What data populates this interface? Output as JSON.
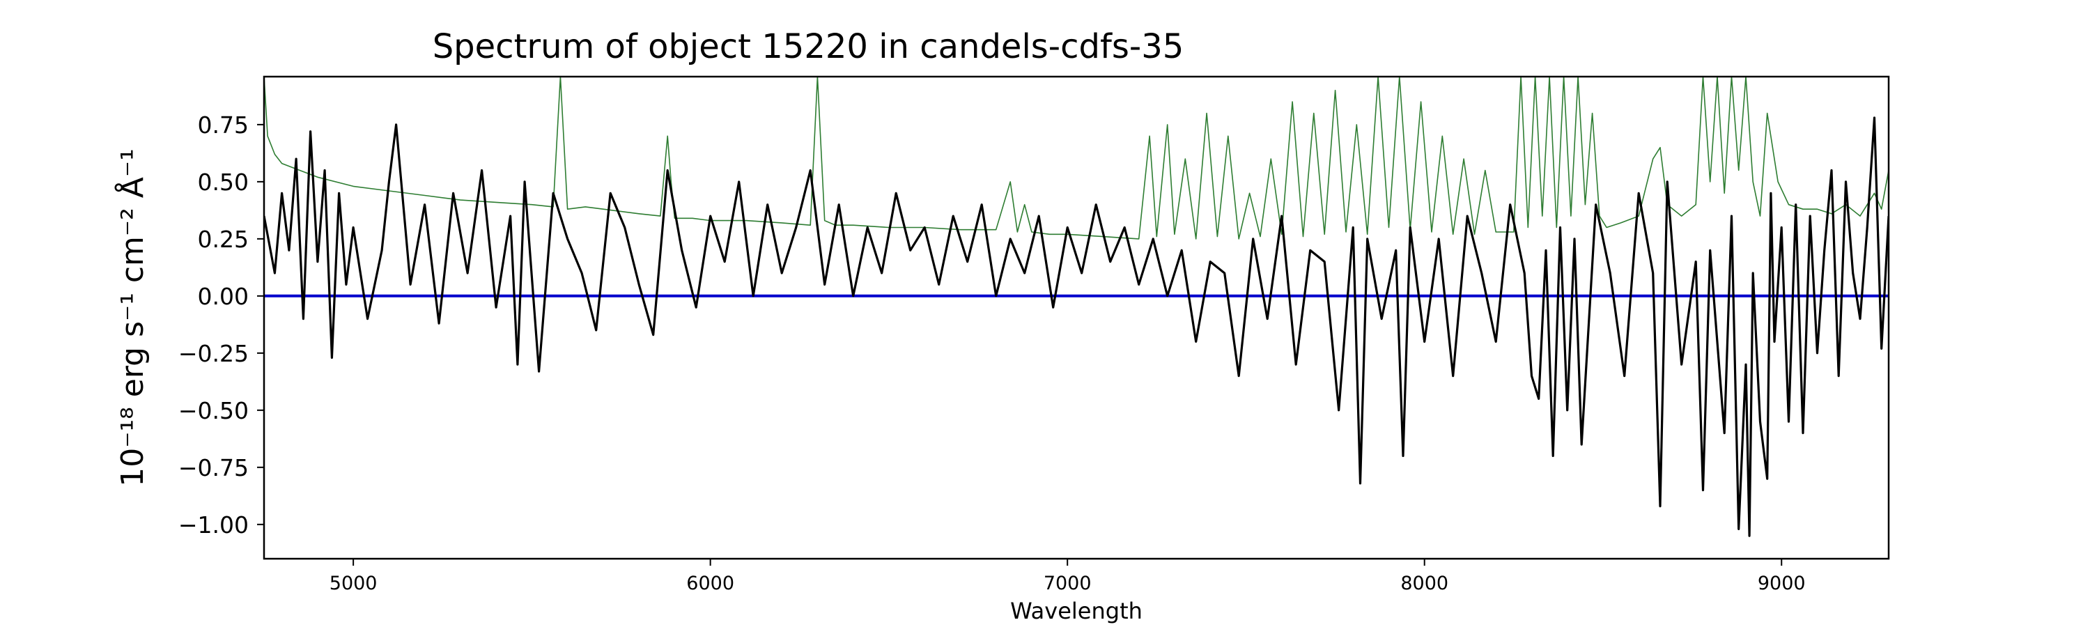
{
  "chart_data": {
    "type": "line",
    "title": "Spectrum of object 15220 in candels-cdfs-35",
    "xlabel": "Wavelength",
    "ylabel": "10⁻¹⁸ erg s⁻¹ cm⁻² Å⁻¹",
    "xlim": [
      4750,
      9300
    ],
    "ylim": [
      -1.15,
      0.96
    ],
    "x_ticks": [
      5000,
      6000,
      7000,
      8000,
      9000
    ],
    "y_ticks": [
      0.75,
      0.5,
      0.25,
      0.0,
      -0.25,
      -0.5,
      -0.75,
      -1.0
    ],
    "grid": false,
    "series": [
      {
        "role": "flux",
        "color": "#000000",
        "x": [
          4750,
          4780,
          4800,
          4820,
          4840,
          4860,
          4880,
          4900,
          4920,
          4940,
          4960,
          4980,
          5000,
          5040,
          5080,
          5100,
          5120,
          5160,
          5200,
          5240,
          5280,
          5320,
          5360,
          5400,
          5440,
          5460,
          5480,
          5520,
          5560,
          5600,
          5640,
          5680,
          5720,
          5760,
          5800,
          5840,
          5880,
          5920,
          5960,
          6000,
          6040,
          6080,
          6120,
          6160,
          6200,
          6240,
          6280,
          6320,
          6360,
          6400,
          6440,
          6480,
          6520,
          6560,
          6600,
          6640,
          6680,
          6720,
          6760,
          6800,
          6840,
          6880,
          6920,
          6960,
          7000,
          7040,
          7080,
          7120,
          7160,
          7200,
          7240,
          7280,
          7320,
          7360,
          7400,
          7440,
          7480,
          7520,
          7560,
          7600,
          7640,
          7680,
          7720,
          7760,
          7800,
          7820,
          7840,
          7880,
          7920,
          7940,
          7960,
          8000,
          8040,
          8080,
          8120,
          8160,
          8200,
          8240,
          8280,
          8300,
          8320,
          8340,
          8360,
          8380,
          8400,
          8420,
          8440,
          8480,
          8520,
          8560,
          8600,
          8640,
          8660,
          8680,
          8720,
          8760,
          8780,
          8800,
          8840,
          8860,
          8880,
          8900,
          8910,
          8920,
          8940,
          8960,
          8970,
          8980,
          9000,
          9020,
          9040,
          9060,
          9080,
          9100,
          9120,
          9140,
          9160,
          9180,
          9200,
          9220,
          9240,
          9260,
          9280,
          9300
        ],
        "values": [
          0.35,
          0.1,
          0.45,
          0.2,
          0.6,
          -0.1,
          0.72,
          0.15,
          0.55,
          -0.27,
          0.45,
          0.05,
          0.3,
          -0.1,
          0.2,
          0.5,
          0.75,
          0.05,
          0.4,
          -0.12,
          0.45,
          0.1,
          0.55,
          -0.05,
          0.35,
          -0.3,
          0.5,
          -0.33,
          0.45,
          0.25,
          0.1,
          -0.15,
          0.45,
          0.3,
          0.05,
          -0.17,
          0.55,
          0.2,
          -0.05,
          0.35,
          0.15,
          0.5,
          0.0,
          0.4,
          0.1,
          0.3,
          0.55,
          0.05,
          0.4,
          0.0,
          0.3,
          0.1,
          0.45,
          0.2,
          0.3,
          0.05,
          0.35,
          0.15,
          0.4,
          0.0,
          0.25,
          0.1,
          0.35,
          -0.05,
          0.3,
          0.1,
          0.4,
          0.15,
          0.3,
          0.05,
          0.25,
          0.0,
          0.2,
          -0.2,
          0.15,
          0.1,
          -0.35,
          0.25,
          -0.1,
          0.35,
          -0.3,
          0.2,
          0.15,
          -0.5,
          0.3,
          -0.82,
          0.25,
          -0.1,
          0.2,
          -0.7,
          0.3,
          -0.2,
          0.25,
          -0.35,
          0.35,
          0.1,
          -0.2,
          0.4,
          0.1,
          -0.35,
          -0.45,
          0.2,
          -0.7,
          0.3,
          -0.5,
          0.25,
          -0.65,
          0.4,
          0.1,
          -0.35,
          0.45,
          0.1,
          -0.92,
          0.5,
          -0.3,
          0.15,
          -0.85,
          0.2,
          -0.6,
          0.35,
          -1.02,
          -0.3,
          -1.05,
          0.1,
          -0.55,
          -0.8,
          0.45,
          -0.2,
          0.3,
          -0.55,
          0.4,
          -0.6,
          0.35,
          -0.25,
          0.2,
          0.55,
          -0.35,
          0.5,
          0.1,
          -0.1,
          0.3,
          0.78,
          -0.23,
          0.35
        ]
      },
      {
        "role": "noise",
        "color": "#2e7d32",
        "x": [
          4750,
          4760,
          4780,
          4800,
          4850,
          4900,
          5000,
          5100,
          5200,
          5300,
          5400,
          5500,
          5560,
          5580,
          5600,
          5650,
          5700,
          5800,
          5860,
          5880,
          5890,
          5900,
          5950,
          6000,
          6100,
          6200,
          6280,
          6300,
          6320,
          6350,
          6400,
          6500,
          6600,
          6700,
          6800,
          6840,
          6860,
          6880,
          6900,
          6950,
          7000,
          7100,
          7200,
          7230,
          7250,
          7280,
          7300,
          7330,
          7360,
          7390,
          7420,
          7450,
          7480,
          7510,
          7540,
          7570,
          7600,
          7630,
          7660,
          7690,
          7720,
          7750,
          7780,
          7810,
          7840,
          7870,
          7900,
          7930,
          7960,
          7990,
          8020,
          8050,
          8080,
          8110,
          8140,
          8170,
          8200,
          8250,
          8270,
          8290,
          8310,
          8330,
          8350,
          8370,
          8390,
          8410,
          8430,
          8450,
          8470,
          8490,
          8510,
          8550,
          8600,
          8640,
          8660,
          8680,
          8720,
          8760,
          8780,
          8800,
          8820,
          8840,
          8860,
          8880,
          8900,
          8920,
          8940,
          8960,
          8990,
          9020,
          9060,
          9100,
          9140,
          9180,
          9220,
          9260,
          9280,
          9300
        ],
        "values": [
          0.96,
          0.7,
          0.62,
          0.58,
          0.55,
          0.52,
          0.48,
          0.46,
          0.44,
          0.42,
          0.41,
          0.4,
          0.39,
          0.96,
          0.38,
          0.39,
          0.38,
          0.36,
          0.35,
          0.7,
          0.5,
          0.34,
          0.34,
          0.33,
          0.33,
          0.32,
          0.31,
          0.96,
          0.33,
          0.31,
          0.31,
          0.3,
          0.3,
          0.29,
          0.29,
          0.5,
          0.28,
          0.4,
          0.28,
          0.27,
          0.27,
          0.26,
          0.25,
          0.7,
          0.26,
          0.75,
          0.27,
          0.6,
          0.25,
          0.8,
          0.26,
          0.7,
          0.25,
          0.45,
          0.26,
          0.6,
          0.27,
          0.85,
          0.26,
          0.8,
          0.27,
          0.9,
          0.28,
          0.75,
          0.27,
          0.96,
          0.3,
          0.96,
          0.29,
          0.85,
          0.28,
          0.7,
          0.27,
          0.6,
          0.27,
          0.55,
          0.28,
          0.28,
          0.96,
          0.3,
          0.96,
          0.35,
          0.96,
          0.3,
          0.96,
          0.35,
          0.96,
          0.4,
          0.8,
          0.35,
          0.3,
          0.32,
          0.35,
          0.6,
          0.65,
          0.4,
          0.35,
          0.4,
          0.96,
          0.5,
          0.96,
          0.45,
          0.96,
          0.55,
          0.96,
          0.5,
          0.35,
          0.8,
          0.5,
          0.4,
          0.38,
          0.38,
          0.36,
          0.4,
          0.35,
          0.45,
          0.38,
          0.55
        ]
      },
      {
        "role": "model",
        "color": "#0000cc",
        "x": [
          4750,
          9300
        ],
        "values": [
          0.0,
          0.0
        ]
      }
    ]
  }
}
